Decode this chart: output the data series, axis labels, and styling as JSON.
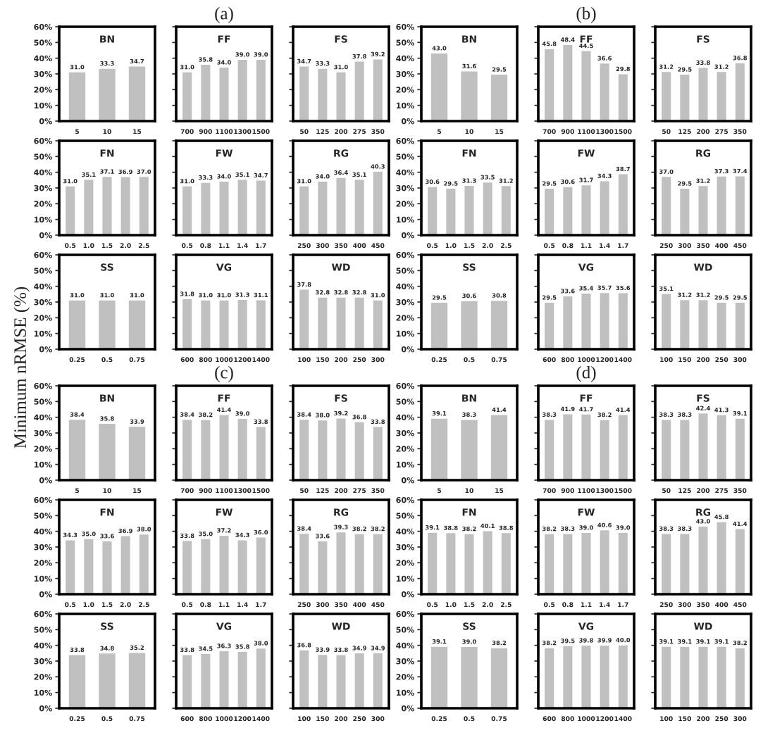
{
  "chart_data": [
    {
      "type": "bar",
      "title": "BN",
      "categories": [
        "5",
        "10",
        "15"
      ],
      "values": [
        31.0,
        33.3,
        34.7
      ],
      "value_labels": [
        "31.0",
        "33.3",
        "34.7"
      ],
      "color": "#c0c0c0",
      "ylim": [
        0,
        60
      ],
      "yticks": [
        {
          "value": 0,
          "label": "0%"
        },
        {
          "value": 10,
          "label": "10%"
        },
        {
          "value": 20,
          "label": "20%"
        },
        {
          "value": 30,
          "label": "30%"
        },
        {
          "value": 40,
          "label": "40%"
        },
        {
          "value": 50,
          "label": "50%"
        },
        {
          "value": 60,
          "label": "60%"
        }
      ]
    },
    {
      "type": "bar",
      "title": "FF",
      "subtitle": "(a)",
      "categories": [
        "700",
        "900",
        "1100",
        "1300",
        "1500"
      ],
      "values": [
        31.0,
        35.8,
        34.0,
        39.0,
        39.0
      ],
      "value_labels": [
        "31.0",
        "35.8",
        "34.0",
        "39.0",
        "39.0"
      ],
      "color": "#c0c0c0",
      "ylim": [
        0,
        60
      ],
      "yticks": [
        {
          "value": 0,
          "label": null
        },
        {
          "value": 10,
          "label": null
        },
        {
          "value": 20,
          "label": null
        },
        {
          "value": 30,
          "label": null
        },
        {
          "value": 40,
          "label": null
        },
        {
          "value": 50,
          "label": null
        },
        {
          "value": 60,
          "label": null
        }
      ]
    },
    {
      "type": "bar",
      "title": "FS",
      "categories": [
        "50",
        "125",
        "200",
        "275",
        "350"
      ],
      "values": [
        34.7,
        33.3,
        31.0,
        37.8,
        39.2
      ],
      "value_labels": [
        "34.7",
        "33.3",
        "31.0",
        "37.8",
        "39.2"
      ],
      "color": "#c0c0c0",
      "ylim": [
        0,
        60
      ],
      "yticks": [
        {
          "value": 0,
          "label": null
        },
        {
          "value": 10,
          "label": null
        },
        {
          "value": 20,
          "label": null
        },
        {
          "value": 30,
          "label": null
        },
        {
          "value": 40,
          "label": null
        },
        {
          "value": 50,
          "label": null
        },
        {
          "value": 60,
          "label": null
        }
      ]
    },
    {
      "type": "bar",
      "title": "FN",
      "categories": [
        "0.5",
        "1.0",
        "1.5",
        "2.0",
        "2.5"
      ],
      "values": [
        31.0,
        35.1,
        37.1,
        36.9,
        37.0
      ],
      "value_labels": [
        "31.0",
        "35.1",
        "37.1",
        "36.9",
        "37.0"
      ],
      "color": "#c0c0c0",
      "ylim": [
        0,
        60
      ],
      "yticks": [
        {
          "value": 0,
          "label": "0%"
        },
        {
          "value": 10,
          "label": "10%"
        },
        {
          "value": 20,
          "label": "20%"
        },
        {
          "value": 30,
          "label": "30%"
        },
        {
          "value": 40,
          "label": "40%"
        },
        {
          "value": 50,
          "label": "50%"
        },
        {
          "value": 60,
          "label": "60%"
        }
      ]
    },
    {
      "type": "bar",
      "title": "FW",
      "categories": [
        "0.5",
        "0.8",
        "1.1",
        "1.4",
        "1.7"
      ],
      "values": [
        31.0,
        33.3,
        34.0,
        35.1,
        34.7
      ],
      "value_labels": [
        "31.0",
        "33.3",
        "34.0",
        "35.1",
        "34.7"
      ],
      "color": "#c0c0c0",
      "ylim": [
        0,
        60
      ],
      "yticks": [
        {
          "value": 0,
          "label": null
        },
        {
          "value": 10,
          "label": null
        },
        {
          "value": 20,
          "label": null
        },
        {
          "value": 30,
          "label": null
        },
        {
          "value": 40,
          "label": null
        },
        {
          "value": 50,
          "label": null
        },
        {
          "value": 60,
          "label": null
        }
      ]
    },
    {
      "type": "bar",
      "title": "RG",
      "categories": [
        "250",
        "300",
        "350",
        "400",
        "450"
      ],
      "values": [
        31.0,
        34.0,
        36.4,
        35.1,
        40.3
      ],
      "value_labels": [
        "31.0",
        "34.0",
        "36.4",
        "35.1",
        "40.3"
      ],
      "color": "#c0c0c0",
      "ylim": [
        0,
        60
      ],
      "yticks": [
        {
          "value": 0,
          "label": null
        },
        {
          "value": 10,
          "label": null
        },
        {
          "value": 20,
          "label": null
        },
        {
          "value": 30,
          "label": null
        },
        {
          "value": 40,
          "label": null
        },
        {
          "value": 50,
          "label": null
        },
        {
          "value": 60,
          "label": null
        }
      ]
    },
    {
      "type": "bar",
      "title": "SS",
      "ylabel": "Minimum nRMSE (%)",
      "categories": [
        "0.25",
        "0.5",
        "0.75"
      ],
      "values": [
        31.0,
        31.0,
        31.0
      ],
      "value_labels": [
        "31.0",
        "31.0",
        "31.0"
      ],
      "color": "#c0c0c0",
      "ylim": [
        0,
        60
      ],
      "yticks": [
        {
          "value": 0,
          "label": "0%"
        },
        {
          "value": 10,
          "label": "10%"
        },
        {
          "value": 20,
          "label": "20%"
        },
        {
          "value": 30,
          "label": "30%"
        },
        {
          "value": 40,
          "label": "40%"
        },
        {
          "value": 50,
          "label": "50%"
        },
        {
          "value": 60,
          "label": "60%"
        }
      ]
    },
    {
      "type": "bar",
      "title": "VG",
      "categories": [
        "600",
        "800",
        "1000",
        "1200",
        "1400"
      ],
      "values": [
        31.8,
        31.0,
        31.0,
        31.3,
        31.1
      ],
      "value_labels": [
        "31.8",
        "31.0",
        "31.0",
        "31.3",
        "31.1"
      ],
      "color": "#c0c0c0",
      "ylim": [
        0,
        60
      ],
      "yticks": [
        {
          "value": 0,
          "label": null
        },
        {
          "value": 10,
          "label": null
        },
        {
          "value": 20,
          "label": null
        },
        {
          "value": 30,
          "label": null
        },
        {
          "value": 40,
          "label": null
        },
        {
          "value": 50,
          "label": null
        },
        {
          "value": 60,
          "label": null
        }
      ]
    },
    {
      "type": "bar",
      "title": "WD",
      "categories": [
        "100",
        "150",
        "200",
        "250",
        "300"
      ],
      "values": [
        37.8,
        32.8,
        32.8,
        32.8,
        31.0
      ],
      "value_labels": [
        "37.8",
        "32.8",
        "32.8",
        "32.8",
        "31.0"
      ],
      "color": "#c0c0c0",
      "ylim": [
        0,
        60
      ],
      "yticks": [
        {
          "value": 0,
          "label": null
        },
        {
          "value": 10,
          "label": null
        },
        {
          "value": 20,
          "label": null
        },
        {
          "value": 30,
          "label": null
        },
        {
          "value": 40,
          "label": null
        },
        {
          "value": 50,
          "label": null
        },
        {
          "value": 60,
          "label": null
        }
      ]
    },
    {
      "type": "bar",
      "title": "BN",
      "categories": [
        "5",
        "10",
        "15"
      ],
      "values": [
        43.0,
        31.6,
        29.5
      ],
      "value_labels": [
        "43.0",
        "31.6",
        "29.5"
      ],
      "color": "#c0c0c0",
      "ylim": [
        0,
        60
      ],
      "yticks": [
        {
          "value": 0,
          "label": "0%"
        },
        {
          "value": 10,
          "label": "10%"
        },
        {
          "value": 20,
          "label": "20%"
        },
        {
          "value": 30,
          "label": "30%"
        },
        {
          "value": 40,
          "label": "40%"
        },
        {
          "value": 50,
          "label": "50%"
        },
        {
          "value": 60,
          "label": "60%"
        }
      ]
    },
    {
      "type": "bar",
      "title": "FF",
      "subtitle": "(b)",
      "categories": [
        "700",
        "900",
        "1100",
        "1300",
        "1500"
      ],
      "values": [
        45.8,
        48.4,
        44.5,
        36.6,
        29.8
      ],
      "value_labels": [
        "45.8",
        "48.4",
        "44.5",
        "36.6",
        "29.8"
      ],
      "color": "#c0c0c0",
      "ylim": [
        0,
        60
      ],
      "yticks": [
        {
          "value": 0,
          "label": null
        },
        {
          "value": 10,
          "label": null
        },
        {
          "value": 20,
          "label": null
        },
        {
          "value": 30,
          "label": null
        },
        {
          "value": 40,
          "label": null
        },
        {
          "value": 50,
          "label": null
        },
        {
          "value": 60,
          "label": null
        }
      ]
    },
    {
      "type": "bar",
      "title": "FS",
      "categories": [
        "50",
        "125",
        "200",
        "275",
        "350"
      ],
      "values": [
        31.2,
        29.5,
        33.8,
        31.2,
        36.8
      ],
      "value_labels": [
        "31.2",
        "29.5",
        "33.8",
        "31.2",
        "36.8"
      ],
      "color": "#c0c0c0",
      "ylim": [
        0,
        60
      ],
      "yticks": [
        {
          "value": 0,
          "label": null
        },
        {
          "value": 10,
          "label": null
        },
        {
          "value": 20,
          "label": null
        },
        {
          "value": 30,
          "label": null
        },
        {
          "value": 40,
          "label": null
        },
        {
          "value": 50,
          "label": null
        },
        {
          "value": 60,
          "label": null
        }
      ]
    },
    {
      "type": "bar",
      "title": "FN",
      "categories": [
        "0.5",
        "1.0",
        "1.5",
        "2.0",
        "2.5"
      ],
      "values": [
        30.6,
        29.5,
        31.3,
        33.5,
        31.2
      ],
      "value_labels": [
        "30.6",
        "29.5",
        "31.3",
        "33.5",
        "31.2"
      ],
      "color": "#c0c0c0",
      "ylim": [
        0,
        60
      ],
      "yticks": [
        {
          "value": 0,
          "label": "0%"
        },
        {
          "value": 10,
          "label": "10%"
        },
        {
          "value": 20,
          "label": "20%"
        },
        {
          "value": 30,
          "label": "30%"
        },
        {
          "value": 40,
          "label": "40%"
        },
        {
          "value": 50,
          "label": "50%"
        },
        {
          "value": 60,
          "label": "60%"
        }
      ]
    },
    {
      "type": "bar",
      "title": "FW",
      "categories": [
        "0.5",
        "0.8",
        "1.1",
        "1.4",
        "1.7"
      ],
      "values": [
        29.5,
        30.6,
        31.7,
        34.3,
        38.7
      ],
      "value_labels": [
        "29.5",
        "30.6",
        "31.7",
        "34.3",
        "38.7"
      ],
      "color": "#c0c0c0",
      "ylim": [
        0,
        60
      ],
      "yticks": [
        {
          "value": 0,
          "label": null
        },
        {
          "value": 10,
          "label": null
        },
        {
          "value": 20,
          "label": null
        },
        {
          "value": 30,
          "label": null
        },
        {
          "value": 40,
          "label": null
        },
        {
          "value": 50,
          "label": null
        },
        {
          "value": 60,
          "label": null
        }
      ]
    },
    {
      "type": "bar",
      "title": "RG",
      "categories": [
        "250",
        "300",
        "350",
        "400",
        "450"
      ],
      "values": [
        37.0,
        29.5,
        31.2,
        37.3,
        37.4
      ],
      "value_labels": [
        "37.0",
        "29.5",
        "31.2",
        "37.3",
        "37.4"
      ],
      "color": "#c0c0c0",
      "ylim": [
        0,
        60
      ],
      "yticks": [
        {
          "value": 0,
          "label": null
        },
        {
          "value": 10,
          "label": null
        },
        {
          "value": 20,
          "label": null
        },
        {
          "value": 30,
          "label": null
        },
        {
          "value": 40,
          "label": null
        },
        {
          "value": 50,
          "label": null
        },
        {
          "value": 60,
          "label": null
        }
      ]
    },
    {
      "type": "bar",
      "title": "SS",
      "categories": [
        "0.25",
        "0.5",
        "0.75"
      ],
      "values": [
        29.5,
        30.6,
        30.8
      ],
      "value_labels": [
        "29.5",
        "30.6",
        "30.8"
      ],
      "color": "#c0c0c0",
      "ylim": [
        0,
        60
      ],
      "yticks": [
        {
          "value": 0,
          "label": "0%"
        },
        {
          "value": 10,
          "label": "10%"
        },
        {
          "value": 20,
          "label": "20%"
        },
        {
          "value": 30,
          "label": "30%"
        },
        {
          "value": 40,
          "label": "40%"
        },
        {
          "value": 50,
          "label": "50%"
        },
        {
          "value": 60,
          "label": "60%"
        }
      ]
    },
    {
      "type": "bar",
      "title": "VG",
      "categories": [
        "600",
        "800",
        "1000",
        "1200",
        "1400"
      ],
      "values": [
        29.5,
        33.6,
        35.4,
        35.7,
        35.6
      ],
      "value_labels": [
        "29.5",
        "33.6",
        "35.4",
        "35.7",
        "35.6"
      ],
      "color": "#c0c0c0",
      "ylim": [
        0,
        60
      ],
      "yticks": [
        {
          "value": 0,
          "label": null
        },
        {
          "value": 10,
          "label": null
        },
        {
          "value": 20,
          "label": null
        },
        {
          "value": 30,
          "label": null
        },
        {
          "value": 40,
          "label": null
        },
        {
          "value": 50,
          "label": null
        },
        {
          "value": 60,
          "label": null
        }
      ]
    },
    {
      "type": "bar",
      "title": "WD",
      "categories": [
        "100",
        "150",
        "200",
        "250",
        "300"
      ],
      "values": [
        35.1,
        31.2,
        31.2,
        29.5,
        29.5
      ],
      "value_labels": [
        "35.1",
        "31.2",
        "31.2",
        "29.5",
        "29.5"
      ],
      "color": "#c0c0c0",
      "ylim": [
        0,
        60
      ],
      "yticks": [
        {
          "value": 0,
          "label": null
        },
        {
          "value": 10,
          "label": null
        },
        {
          "value": 20,
          "label": null
        },
        {
          "value": 30,
          "label": null
        },
        {
          "value": 40,
          "label": null
        },
        {
          "value": 50,
          "label": null
        },
        {
          "value": 60,
          "label": null
        }
      ]
    },
    {
      "type": "bar",
      "title": "BN",
      "categories": [
        "5",
        "10",
        "15"
      ],
      "values": [
        38.4,
        35.8,
        33.9
      ],
      "value_labels": [
        "38.4",
        "35.8",
        "33.9"
      ],
      "color": "#c0c0c0",
      "ylim": [
        0,
        60
      ],
      "yticks": [
        {
          "value": 0,
          "label": "0%"
        },
        {
          "value": 10,
          "label": "10%"
        },
        {
          "value": 20,
          "label": "20%"
        },
        {
          "value": 30,
          "label": "30%"
        },
        {
          "value": 40,
          "label": "40%"
        },
        {
          "value": 50,
          "label": "50%"
        },
        {
          "value": 60,
          "label": "60%"
        }
      ]
    },
    {
      "type": "bar",
      "title": "FF",
      "subtitle": "(c)",
      "categories": [
        "700",
        "900",
        "1100",
        "1300",
        "1500"
      ],
      "values": [
        38.4,
        38.2,
        41.4,
        39.0,
        33.8
      ],
      "value_labels": [
        "38.4",
        "38.2",
        "41.4",
        "39.0",
        "33.8"
      ],
      "color": "#c0c0c0",
      "ylim": [
        0,
        60
      ],
      "yticks": [
        {
          "value": 0,
          "label": null
        },
        {
          "value": 10,
          "label": null
        },
        {
          "value": 20,
          "label": null
        },
        {
          "value": 30,
          "label": null
        },
        {
          "value": 40,
          "label": null
        },
        {
          "value": 50,
          "label": null
        },
        {
          "value": 60,
          "label": null
        }
      ]
    },
    {
      "type": "bar",
      "title": "FS",
      "categories": [
        "50",
        "125",
        "200",
        "275",
        "350"
      ],
      "values": [
        38.4,
        38.0,
        39.2,
        36.8,
        33.8
      ],
      "value_labels": [
        "38.4",
        "38.0",
        "39.2",
        "36.8",
        "33.8"
      ],
      "color": "#c0c0c0",
      "ylim": [
        0,
        60
      ],
      "yticks": [
        {
          "value": 0,
          "label": null
        },
        {
          "value": 10,
          "label": null
        },
        {
          "value": 20,
          "label": null
        },
        {
          "value": 30,
          "label": null
        },
        {
          "value": 40,
          "label": null
        },
        {
          "value": 50,
          "label": null
        },
        {
          "value": 60,
          "label": null
        }
      ]
    },
    {
      "type": "bar",
      "title": "FN",
      "categories": [
        "0.5",
        "1.0",
        "1.5",
        "2.0",
        "2.5"
      ],
      "values": [
        34.3,
        35.0,
        33.6,
        36.9,
        38.0
      ],
      "value_labels": [
        "34.3",
        "35.0",
        "33.6",
        "36.9",
        "38.0"
      ],
      "color": "#c0c0c0",
      "ylim": [
        0,
        60
      ],
      "yticks": [
        {
          "value": 0,
          "label": "0%"
        },
        {
          "value": 10,
          "label": "10%"
        },
        {
          "value": 20,
          "label": "20%"
        },
        {
          "value": 30,
          "label": "30%"
        },
        {
          "value": 40,
          "label": "40%"
        },
        {
          "value": 50,
          "label": "50%"
        },
        {
          "value": 60,
          "label": "60%"
        }
      ]
    },
    {
      "type": "bar",
      "title": "FW",
      "categories": [
        "0.5",
        "0.8",
        "1.1",
        "1.4",
        "1.7"
      ],
      "values": [
        33.8,
        35.0,
        37.2,
        34.3,
        36.0
      ],
      "value_labels": [
        "33.8",
        "35.0",
        "37.2",
        "34.3",
        "36.0"
      ],
      "color": "#c0c0c0",
      "ylim": [
        0,
        60
      ],
      "yticks": [
        {
          "value": 0,
          "label": null
        },
        {
          "value": 10,
          "label": null
        },
        {
          "value": 20,
          "label": null
        },
        {
          "value": 30,
          "label": null
        },
        {
          "value": 40,
          "label": null
        },
        {
          "value": 50,
          "label": null
        },
        {
          "value": 60,
          "label": null
        }
      ]
    },
    {
      "type": "bar",
      "title": "RG",
      "categories": [
        "250",
        "300",
        "350",
        "400",
        "450"
      ],
      "values": [
        38.4,
        33.6,
        39.3,
        38.2,
        38.2
      ],
      "value_labels": [
        "38.4",
        "33.6",
        "39.3",
        "38.2",
        "38.2"
      ],
      "color": "#c0c0c0",
      "ylim": [
        0,
        60
      ],
      "yticks": [
        {
          "value": 0,
          "label": null
        },
        {
          "value": 10,
          "label": null
        },
        {
          "value": 20,
          "label": null
        },
        {
          "value": 30,
          "label": null
        },
        {
          "value": 40,
          "label": null
        },
        {
          "value": 50,
          "label": null
        },
        {
          "value": 60,
          "label": null
        }
      ]
    },
    {
      "type": "bar",
      "title": "SS",
      "categories": [
        "0.25",
        "0.5",
        "0.75"
      ],
      "values": [
        33.8,
        34.8,
        35.2
      ],
      "value_labels": [
        "33.8",
        "34.8",
        "35.2"
      ],
      "color": "#c0c0c0",
      "ylim": [
        0,
        60
      ],
      "yticks": [
        {
          "value": 0,
          "label": "0%"
        },
        {
          "value": 10,
          "label": "10%"
        },
        {
          "value": 20,
          "label": "20%"
        },
        {
          "value": 30,
          "label": "30%"
        },
        {
          "value": 40,
          "label": "40%"
        },
        {
          "value": 50,
          "label": "50%"
        },
        {
          "value": 60,
          "label": "60%"
        }
      ]
    },
    {
      "type": "bar",
      "title": "VG",
      "categories": [
        "600",
        "800",
        "1000",
        "1200",
        "1400"
      ],
      "values": [
        33.8,
        34.5,
        36.3,
        35.8,
        38.0
      ],
      "value_labels": [
        "33.8",
        "34.5",
        "36.3",
        "35.8",
        "38.0"
      ],
      "color": "#c0c0c0",
      "ylim": [
        0,
        60
      ],
      "yticks": [
        {
          "value": 0,
          "label": null
        },
        {
          "value": 10,
          "label": null
        },
        {
          "value": 20,
          "label": null
        },
        {
          "value": 30,
          "label": null
        },
        {
          "value": 40,
          "label": null
        },
        {
          "value": 50,
          "label": null
        },
        {
          "value": 60,
          "label": null
        }
      ]
    },
    {
      "type": "bar",
      "title": "WD",
      "categories": [
        "100",
        "150",
        "200",
        "250",
        "300"
      ],
      "values": [
        36.8,
        33.9,
        33.8,
        34.9,
        34.9
      ],
      "value_labels": [
        "36.8",
        "33.9",
        "33.8",
        "34.9",
        "34.9"
      ],
      "color": "#c0c0c0",
      "ylim": [
        0,
        60
      ],
      "yticks": [
        {
          "value": 0,
          "label": null
        },
        {
          "value": 10,
          "label": null
        },
        {
          "value": 20,
          "label": null
        },
        {
          "value": 30,
          "label": null
        },
        {
          "value": 40,
          "label": null
        },
        {
          "value": 50,
          "label": null
        },
        {
          "value": 60,
          "label": null
        }
      ]
    },
    {
      "type": "bar",
      "title": "BN",
      "categories": [
        "5",
        "10",
        "15"
      ],
      "values": [
        39.1,
        38.3,
        41.4
      ],
      "value_labels": [
        "39.1",
        "38.3",
        "41.4"
      ],
      "color": "#c0c0c0",
      "ylim": [
        0,
        60
      ],
      "yticks": [
        {
          "value": 0,
          "label": "0%"
        },
        {
          "value": 10,
          "label": "10%"
        },
        {
          "value": 20,
          "label": "20%"
        },
        {
          "value": 30,
          "label": "30%"
        },
        {
          "value": 40,
          "label": "40%"
        },
        {
          "value": 50,
          "label": "50%"
        },
        {
          "value": 60,
          "label": "60%"
        }
      ]
    },
    {
      "type": "bar",
      "title": "FF",
      "subtitle": "(d)",
      "categories": [
        "700",
        "900",
        "1100",
        "1300",
        "1500"
      ],
      "values": [
        38.3,
        41.9,
        41.7,
        38.2,
        41.4
      ],
      "value_labels": [
        "38.3",
        "41.9",
        "41.7",
        "38.2",
        "41.4"
      ],
      "color": "#c0c0c0",
      "ylim": [
        0,
        60
      ],
      "yticks": [
        {
          "value": 0,
          "label": null
        },
        {
          "value": 10,
          "label": null
        },
        {
          "value": 20,
          "label": null
        },
        {
          "value": 30,
          "label": null
        },
        {
          "value": 40,
          "label": null
        },
        {
          "value": 50,
          "label": null
        },
        {
          "value": 60,
          "label": null
        }
      ]
    },
    {
      "type": "bar",
      "title": "FS",
      "categories": [
        "50",
        "125",
        "200",
        "275",
        "350"
      ],
      "values": [
        38.3,
        38.3,
        42.4,
        41.3,
        39.1
      ],
      "value_labels": [
        "38.3",
        "38.3",
        "42.4",
        "41.3",
        "39.1"
      ],
      "color": "#c0c0c0",
      "ylim": [
        0,
        60
      ],
      "yticks": [
        {
          "value": 0,
          "label": null
        },
        {
          "value": 10,
          "label": null
        },
        {
          "value": 20,
          "label": null
        },
        {
          "value": 30,
          "label": null
        },
        {
          "value": 40,
          "label": null
        },
        {
          "value": 50,
          "label": null
        },
        {
          "value": 60,
          "label": null
        }
      ]
    },
    {
      "type": "bar",
      "title": "FN",
      "categories": [
        "0.5",
        "1.0",
        "1.5",
        "2.0",
        "2.5"
      ],
      "values": [
        39.1,
        38.8,
        38.2,
        40.1,
        38.8
      ],
      "value_labels": [
        "39.1",
        "38.8",
        "38.2",
        "40.1",
        "38.8"
      ],
      "color": "#c0c0c0",
      "ylim": [
        0,
        60
      ],
      "yticks": [
        {
          "value": 0,
          "label": "0%"
        },
        {
          "value": 10,
          "label": "10%"
        },
        {
          "value": 20,
          "label": "20%"
        },
        {
          "value": 30,
          "label": "30%"
        },
        {
          "value": 40,
          "label": "40%"
        },
        {
          "value": 50,
          "label": "50%"
        },
        {
          "value": 60,
          "label": "60%"
        }
      ]
    },
    {
      "type": "bar",
      "title": "FW",
      "categories": [
        "0.5",
        "0.8",
        "1.1",
        "1.4",
        "1.7"
      ],
      "values": [
        38.2,
        38.3,
        39.0,
        40.6,
        39.0
      ],
      "value_labels": [
        "38.2",
        "38.3",
        "39.0",
        "40.6",
        "39.0"
      ],
      "color": "#c0c0c0",
      "ylim": [
        0,
        60
      ],
      "yticks": [
        {
          "value": 0,
          "label": null
        },
        {
          "value": 10,
          "label": null
        },
        {
          "value": 20,
          "label": null
        },
        {
          "value": 30,
          "label": null
        },
        {
          "value": 40,
          "label": null
        },
        {
          "value": 50,
          "label": null
        },
        {
          "value": 60,
          "label": null
        }
      ]
    },
    {
      "type": "bar",
      "title": "RG",
      "categories": [
        "250",
        "300",
        "350",
        "400",
        "450"
      ],
      "values": [
        38.3,
        38.3,
        43.0,
        45.8,
        41.4
      ],
      "value_labels": [
        "38.3",
        "38.3",
        "43.0",
        "45.8",
        "41.4"
      ],
      "color": "#c0c0c0",
      "ylim": [
        0,
        60
      ],
      "yticks": [
        {
          "value": 0,
          "label": null
        },
        {
          "value": 10,
          "label": null
        },
        {
          "value": 20,
          "label": null
        },
        {
          "value": 30,
          "label": null
        },
        {
          "value": 40,
          "label": null
        },
        {
          "value": 50,
          "label": null
        },
        {
          "value": 60,
          "label": null
        }
      ]
    },
    {
      "type": "bar",
      "title": "SS",
      "categories": [
        "0.25",
        "0.5",
        "0.75"
      ],
      "values": [
        39.1,
        39.0,
        38.2
      ],
      "value_labels": [
        "39.1",
        "39.0",
        "38.2"
      ],
      "color": "#c0c0c0",
      "ylim": [
        0,
        60
      ],
      "yticks": [
        {
          "value": 0,
          "label": "0%"
        },
        {
          "value": 10,
          "label": "10%"
        },
        {
          "value": 20,
          "label": "20%"
        },
        {
          "value": 30,
          "label": "30%"
        },
        {
          "value": 40,
          "label": "40%"
        },
        {
          "value": 50,
          "label": "50%"
        },
        {
          "value": 60,
          "label": "60%"
        }
      ]
    },
    {
      "type": "bar",
      "title": "VG",
      "categories": [
        "600",
        "800",
        "1000",
        "1200",
        "1400"
      ],
      "values": [
        38.2,
        39.5,
        39.8,
        39.9,
        40.0
      ],
      "value_labels": [
        "38.2",
        "39.5",
        "39.8",
        "39.9",
        "40.0"
      ],
      "color": "#c0c0c0",
      "ylim": [
        0,
        60
      ],
      "yticks": [
        {
          "value": 0,
          "label": null
        },
        {
          "value": 10,
          "label": null
        },
        {
          "value": 20,
          "label": null
        },
        {
          "value": 30,
          "label": null
        },
        {
          "value": 40,
          "label": null
        },
        {
          "value": 50,
          "label": null
        },
        {
          "value": 60,
          "label": null
        }
      ]
    },
    {
      "type": "bar",
      "title": "WD",
      "categories": [
        "100",
        "150",
        "200",
        "250",
        "300"
      ],
      "values": [
        39.1,
        39.1,
        39.1,
        39.1,
        38.2
      ],
      "value_labels": [
        "39.1",
        "39.1",
        "39.1",
        "39.1",
        "38.2"
      ],
      "color": "#c0c0c0",
      "ylim": [
        0,
        60
      ],
      "yticks": [
        {
          "value": 0,
          "label": null
        },
        {
          "value": 10,
          "label": null
        },
        {
          "value": 20,
          "label": null
        },
        {
          "value": 30,
          "label": null
        },
        {
          "value": 40,
          "label": null
        },
        {
          "value": 50,
          "label": null
        },
        {
          "value": 60,
          "label": null
        }
      ]
    }
  ]
}
